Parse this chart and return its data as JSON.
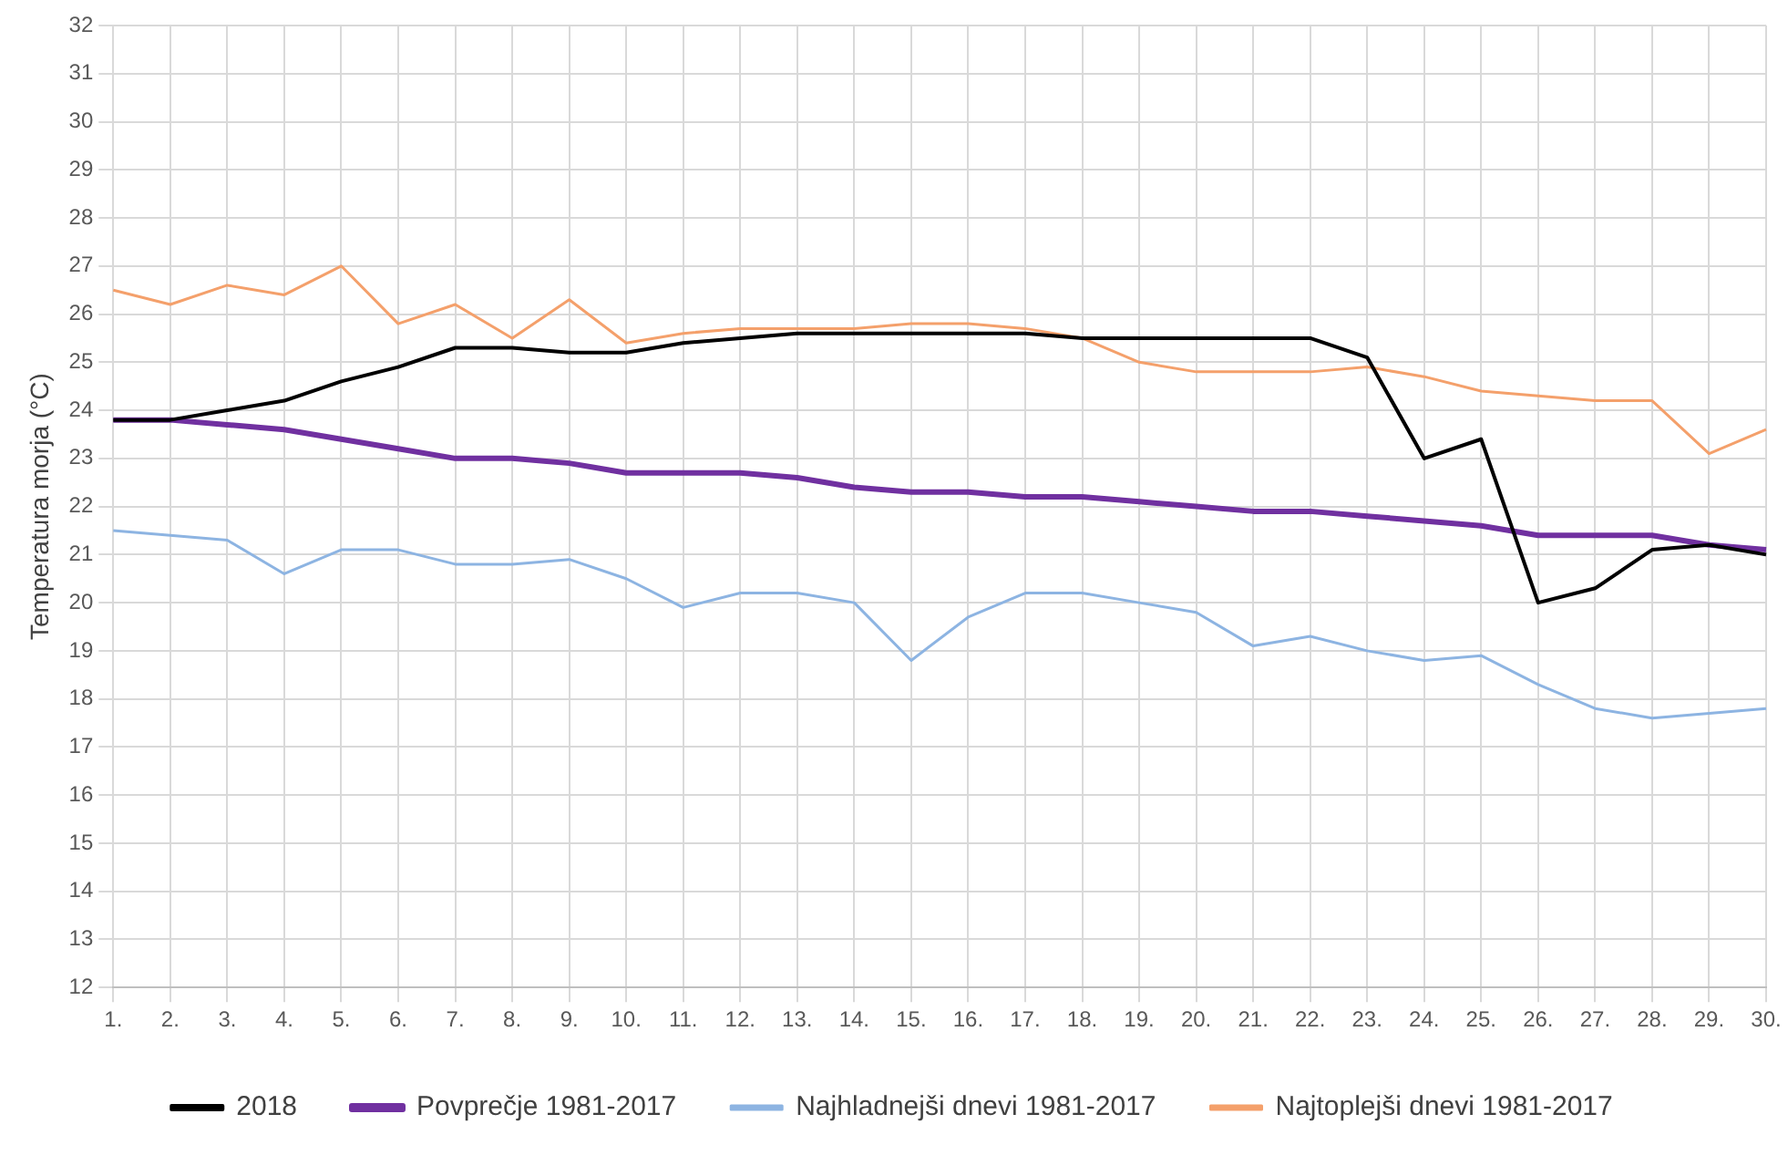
{
  "chart_data": {
    "type": "line",
    "ylabel": "Temperatura morja (°C)",
    "categories": [
      "1.",
      "2.",
      "3.",
      "4.",
      "5.",
      "6.",
      "7.",
      "8.",
      "9.",
      "10.",
      "11.",
      "12.",
      "13.",
      "14.",
      "15.",
      "16.",
      "17.",
      "18.",
      "19.",
      "20.",
      "21.",
      "22.",
      "23.",
      "24.",
      "25.",
      "26.",
      "27.",
      "28.",
      "29.",
      "30."
    ],
    "series": [
      {
        "name": "2018",
        "color": "#000000",
        "values": [
          23.8,
          23.8,
          24.0,
          24.2,
          24.6,
          24.9,
          25.3,
          25.3,
          25.2,
          25.2,
          25.4,
          25.5,
          25.6,
          25.6,
          25.6,
          25.6,
          25.6,
          25.5,
          25.5,
          25.5,
          25.5,
          25.5,
          25.1,
          23.0,
          23.4,
          20.0,
          20.3,
          21.1,
          21.2,
          21.0
        ]
      },
      {
        "name": "Povprečje 1981-2017",
        "color": "#7030a0",
        "values": [
          23.8,
          23.8,
          23.7,
          23.6,
          23.4,
          23.2,
          23.0,
          23.0,
          22.9,
          22.7,
          22.7,
          22.7,
          22.6,
          22.4,
          22.3,
          22.3,
          22.2,
          22.2,
          22.1,
          22.0,
          21.9,
          21.9,
          21.8,
          21.7,
          21.6,
          21.4,
          21.4,
          21.4,
          21.2,
          21.1
        ]
      },
      {
        "name": "Najhladnejši dnevi 1981-2017",
        "color": "#8db4e2",
        "values": [
          21.5,
          21.4,
          21.3,
          20.6,
          21.1,
          21.1,
          20.8,
          20.8,
          20.9,
          20.5,
          19.9,
          20.2,
          20.2,
          20.0,
          18.8,
          19.7,
          20.2,
          20.2,
          20.0,
          19.8,
          19.1,
          19.3,
          19.0,
          18.8,
          18.9,
          18.3,
          17.8,
          17.6,
          17.7,
          17.8
        ]
      },
      {
        "name": "Najtoplejši dnevi 1981-2017",
        "color": "#f4a06b",
        "values": [
          26.5,
          26.2,
          26.6,
          26.4,
          27.0,
          25.8,
          26.2,
          25.5,
          26.3,
          25.4,
          25.6,
          25.7,
          25.7,
          25.7,
          25.8,
          25.8,
          25.7,
          25.5,
          25.0,
          24.8,
          24.8,
          24.8,
          24.9,
          24.7,
          24.4,
          24.3,
          24.2,
          24.2,
          23.1,
          23.6
        ]
      }
    ],
    "ylim": [
      12,
      32
    ],
    "yticks": [
      12,
      13,
      14,
      15,
      16,
      17,
      18,
      19,
      20,
      21,
      22,
      23,
      24,
      25,
      26,
      27,
      28,
      29,
      30,
      31,
      32
    ],
    "grid": true,
    "legend": "bottom",
    "marker": "none",
    "line_style": "solid"
  }
}
